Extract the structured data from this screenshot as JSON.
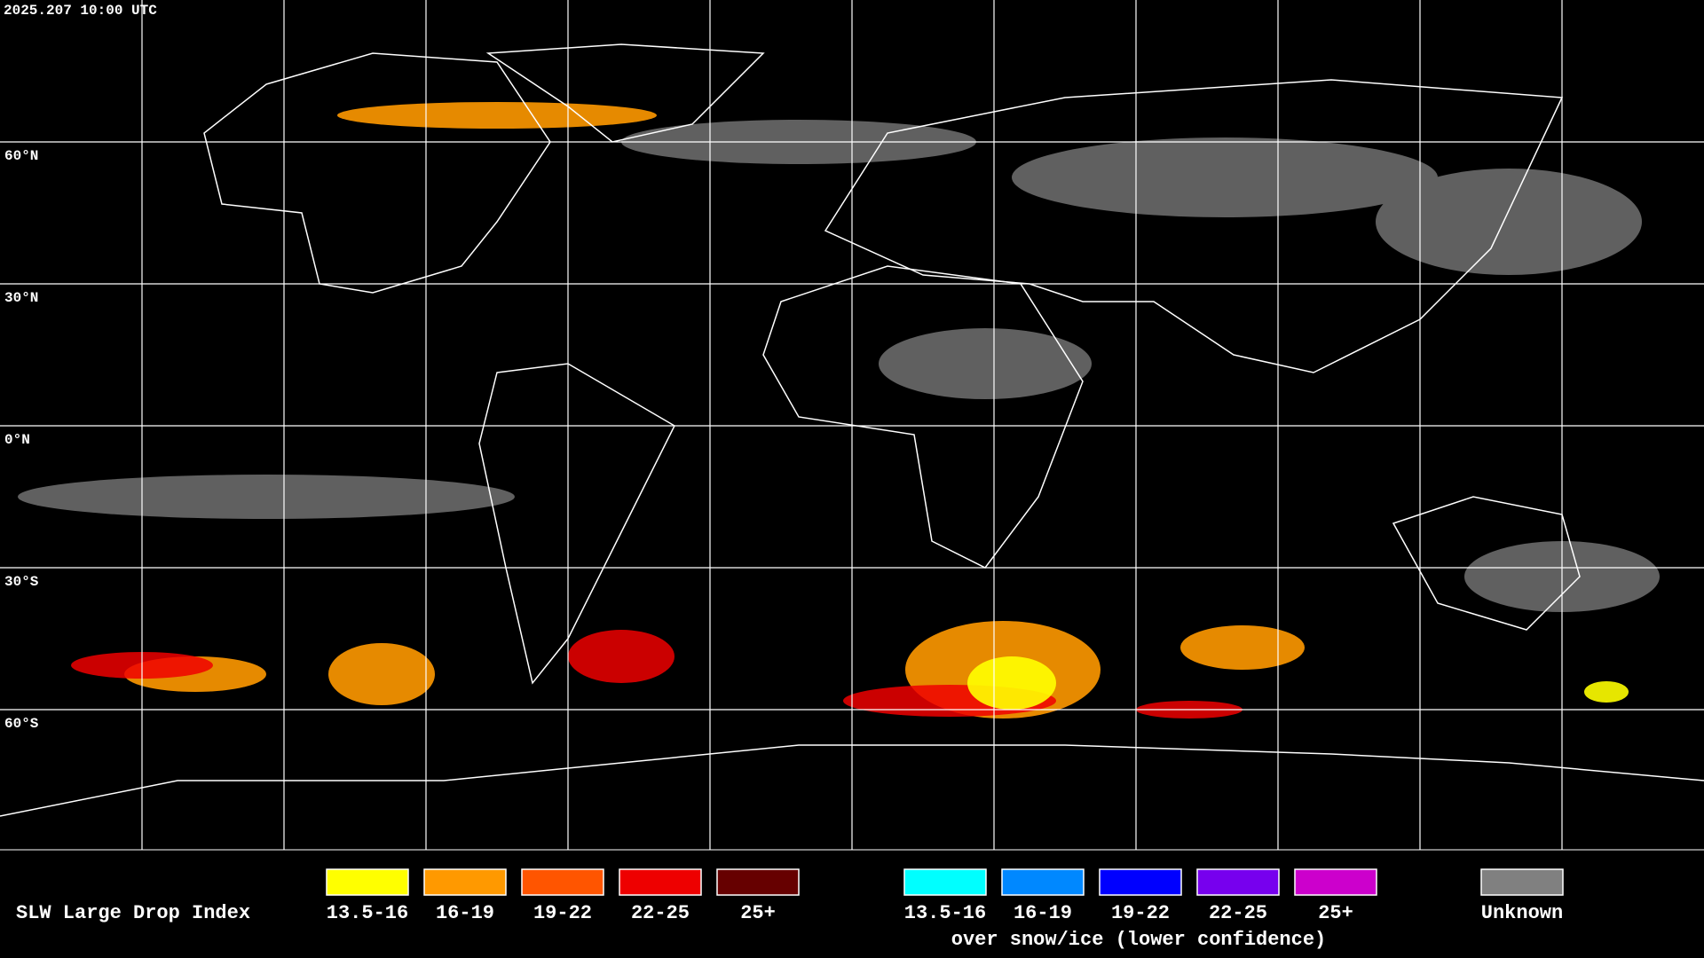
{
  "header": {
    "timestamp": "2025.207 10:00 UTC"
  },
  "map": {
    "latitude_labels": [
      "60°N",
      "30°N",
      "0°N",
      "30°S",
      "60°S"
    ]
  },
  "legend": {
    "title": "SLW Large Drop Index",
    "items": [
      {
        "label": "13.5-16",
        "color": "#ffff00"
      },
      {
        "label": "16-19",
        "color": "#ff9900"
      },
      {
        "label": "19-22",
        "color": "#ff5500"
      },
      {
        "label": "22-25",
        "color": "#ee0000"
      },
      {
        "label": "25+",
        "color": "#660000"
      }
    ],
    "snow_items": [
      {
        "label": "13.5-16",
        "color": "#00ffff"
      },
      {
        "label": "16-19",
        "color": "#0088ff"
      },
      {
        "label": "19-22",
        "color": "#0000ff"
      },
      {
        "label": "22-25",
        "color": "#7700ee"
      },
      {
        "label": "25+",
        "color": "#cc00cc"
      }
    ],
    "snow_caption": "over snow/ice (lower confidence)",
    "unknown": {
      "label": "Unknown",
      "color": "#808080"
    }
  }
}
